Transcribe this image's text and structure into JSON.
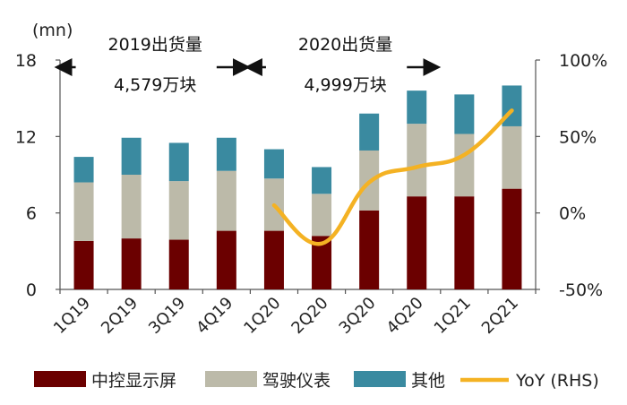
{
  "chart_data": {
    "type": "bar",
    "stacked": true,
    "categories": [
      "1Q19",
      "2Q19",
      "3Q19",
      "4Q19",
      "1Q20",
      "2Q20",
      "3Q20",
      "4Q20",
      "1Q21",
      "2Q21"
    ],
    "series": [
      {
        "name": "中控显示屏",
        "color": "#6b0000",
        "values": [
          3.8,
          4.0,
          3.9,
          4.6,
          4.6,
          4.2,
          6.2,
          7.3,
          7.3,
          7.9
        ]
      },
      {
        "name": "驾驶仪表",
        "color": "#bcbaa9",
        "values": [
          4.6,
          5.0,
          4.6,
          4.7,
          4.1,
          3.3,
          4.7,
          5.7,
          4.9,
          4.9
        ]
      },
      {
        "name": "其他",
        "color": "#3a8aa0",
        "values": [
          2.0,
          2.9,
          3.0,
          2.6,
          2.3,
          2.1,
          2.9,
          2.6,
          3.1,
          3.2
        ]
      }
    ],
    "line_series": {
      "name": "YoY (RHS)",
      "color": "#f4b223",
      "x_start": "1Q20",
      "values": [
        5,
        -20,
        20,
        30,
        38,
        67
      ]
    },
    "ylabel_left": "(mn)",
    "y_left_ticks": [
      "0",
      "6",
      "12",
      "18"
    ],
    "ylim_left": [
      0,
      18
    ],
    "y_right_ticks": [
      "-50%",
      "0%",
      "50%",
      "100%"
    ],
    "ylim_right": [
      -50,
      100
    ],
    "annotations": [
      {
        "line1": "2019出货量",
        "line2": "4,579万块",
        "from": "1Q19",
        "to": "4Q19"
      },
      {
        "line1": "2020出货量",
        "line2": "4,999万块",
        "from": "1Q20",
        "to": "4Q20"
      }
    ],
    "legend_position": "bottom",
    "grid": false
  }
}
